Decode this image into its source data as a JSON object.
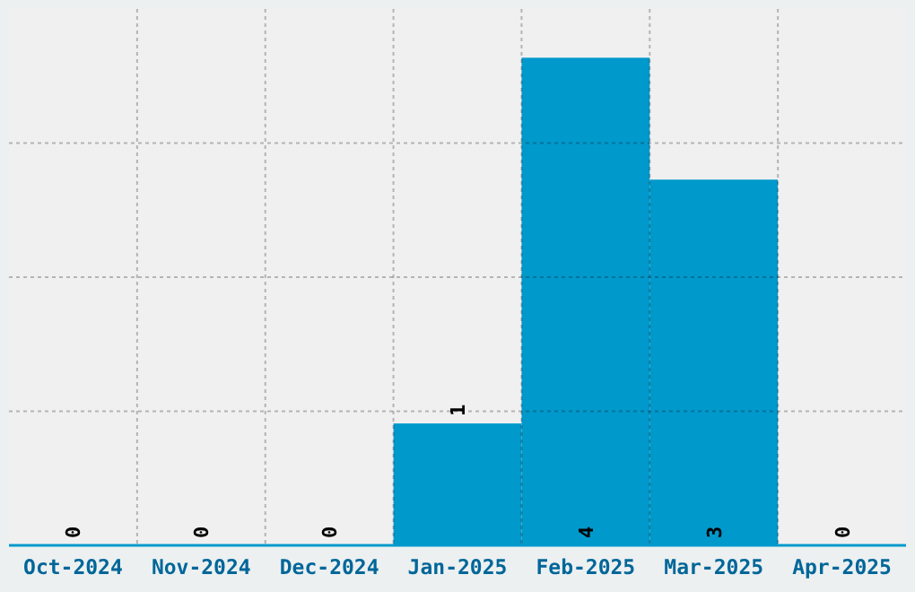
{
  "chart_data": {
    "type": "bar",
    "categories": [
      "Oct-2024",
      "Nov-2024",
      "Dec-2024",
      "Jan-2025",
      "Feb-2025",
      "Mar-2025",
      "Apr-2025"
    ],
    "values": [
      0,
      0,
      0,
      1,
      4,
      3,
      0
    ],
    "color": "#0099cc",
    "ylim": [
      0,
      4.4
    ],
    "yticks": [
      {
        "value": 1.1,
        "label": null
      },
      {
        "value": 2.2,
        "label": null
      },
      {
        "value": 3.3,
        "label": null
      }
    ],
    "tick_labels": "x",
    "grid": true,
    "data_labels": true
  }
}
